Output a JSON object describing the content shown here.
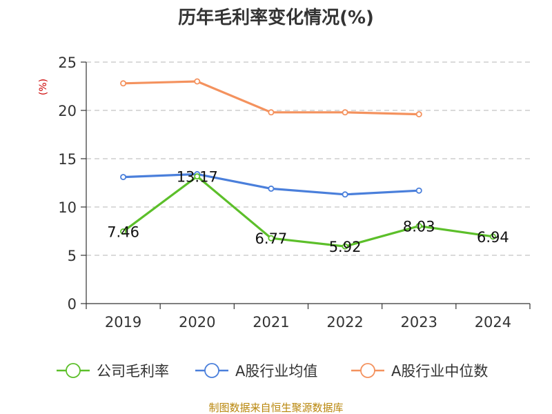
{
  "source": "制图数据来自恒生聚源数据库",
  "colors": {
    "company": "#5cbf2a",
    "industry_avg": "#4a7fdb",
    "industry_median": "#f4925e",
    "grid": "#c4c4c4",
    "axis": "#333333",
    "unit": "#cc0000",
    "source": "#b8860b"
  },
  "chart_data": {
    "type": "line",
    "title": "历年毛利率变化情况(%)",
    "ylabel": "(%)",
    "categories": [
      "2019",
      "2020",
      "2021",
      "2022",
      "2023",
      "2024"
    ],
    "ylim": [
      0,
      25
    ],
    "yticks": [
      "0",
      "5",
      "10",
      "15",
      "20",
      "25"
    ],
    "grid": "horizontal dashed",
    "legend_position": "bottom",
    "series": [
      {
        "name": "公司毛利率",
        "values": [
          7.46,
          13.17,
          6.77,
          5.92,
          8.03,
          6.94
        ],
        "labels": [
          "7.46",
          "13.17",
          "6.77",
          "5.92",
          "8.03",
          "6.94"
        ]
      },
      {
        "name": "A股行业均值",
        "values": [
          13.1,
          13.4,
          11.9,
          11.3,
          11.7,
          null
        ]
      },
      {
        "name": "A股行业中位数",
        "values": [
          22.8,
          23.0,
          19.8,
          19.8,
          19.6,
          null
        ]
      }
    ]
  }
}
